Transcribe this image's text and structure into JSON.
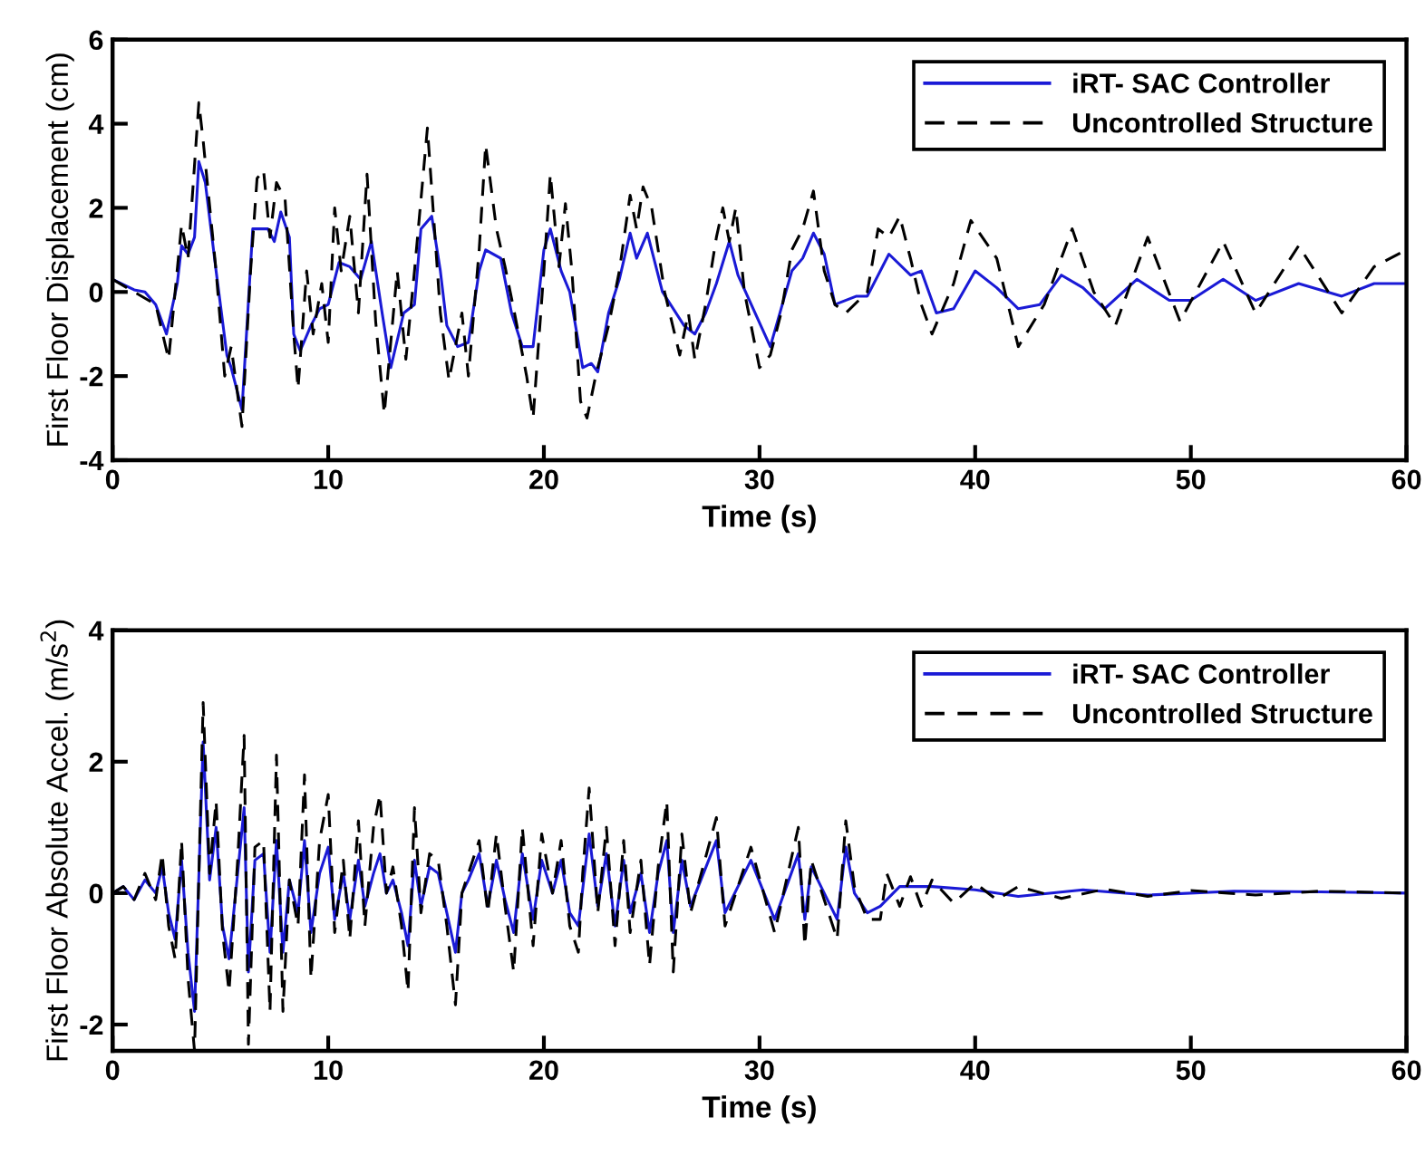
{
  "chart_data": [
    {
      "type": "line",
      "xlabel": "Time (s)",
      "ylabel": "First Floor Displacement (cm)",
      "xlim": [
        0,
        60
      ],
      "xticks": [
        0,
        10,
        20,
        30,
        40,
        50,
        60
      ],
      "ylim": [
        -4,
        6
      ],
      "yticks": [
        -4,
        -2,
        0,
        2,
        4,
        6
      ],
      "grid": false,
      "legend": "top right",
      "series": [
        {
          "name": "iRT- SAC Controller",
          "color": "#1a1ad6",
          "line_style": "solid",
          "x": [
            0,
            1,
            1.5,
            2,
            2.5,
            3,
            3.2,
            3.5,
            3.8,
            4.0,
            4.3,
            4.8,
            5.3,
            5.5,
            5.8,
            6.0,
            6.5,
            7.2,
            7.5,
            7.8,
            8.2,
            8.4,
            8.7,
            9.2,
            9.6,
            10,
            10.5,
            11,
            11.5,
            12,
            12.5,
            12.9,
            13.5,
            14,
            14.3,
            14.8,
            15.2,
            15.5,
            16,
            16.5,
            17,
            17.3,
            18,
            18.5,
            19,
            19.5,
            20,
            20.3,
            20.8,
            21.2,
            21.8,
            22.2,
            22.5,
            23,
            23.5,
            24,
            24.3,
            24.8,
            25.5,
            26.5,
            27,
            27.5,
            28,
            28.6,
            29.0,
            30.5,
            31.5,
            32,
            32.5,
            33,
            33.5,
            34.5,
            35,
            36,
            37,
            37.5,
            38.2,
            39,
            40,
            41,
            42,
            43,
            44,
            45,
            46,
            47.5,
            49,
            50,
            51.5,
            53,
            55,
            57,
            58.5,
            60
          ],
          "values": [
            0.3,
            0.05,
            0,
            -0.3,
            -1.0,
            0.2,
            1.1,
            0.9,
            1.3,
            3.1,
            2.6,
            0.5,
            -1.5,
            -1.8,
            -2.4,
            -2.8,
            1.5,
            1.5,
            1.2,
            1.9,
            1.3,
            -1.0,
            -1.4,
            -0.8,
            -0.4,
            -0.3,
            0.7,
            0.6,
            0.3,
            1.2,
            -0.5,
            -1.8,
            -0.5,
            -0.3,
            1.5,
            1.8,
            0.5,
            -0.8,
            -1.3,
            -1.2,
            0.5,
            1.0,
            0.8,
            -0.5,
            -1.3,
            -1.3,
            1.0,
            1.5,
            0.5,
            0,
            -1.8,
            -1.7,
            -1.9,
            -0.5,
            0.3,
            1.4,
            0.8,
            1.4,
            0,
            -0.8,
            -1.0,
            -0.5,
            0.2,
            1.2,
            0.4,
            -1.3,
            0.5,
            0.8,
            1.4,
            0.9,
            -0.3,
            -0.1,
            -0.1,
            0.9,
            0.4,
            0.5,
            -0.5,
            -0.4,
            0.5,
            0.1,
            -0.4,
            -0.3,
            0.4,
            0.1,
            -0.4,
            0.3,
            -0.2,
            -0.2,
            0.3,
            -0.2,
            0.2,
            -0.1,
            0.2,
            0.2
          ]
        },
        {
          "name": "Uncontrolled Structure",
          "color": "#000000",
          "line_style": "dashed",
          "x": [
            0,
            1,
            2,
            2.6,
            3.2,
            3.5,
            4.0,
            4.2,
            4.8,
            5.2,
            5.5,
            6.0,
            6.4,
            6.7,
            7.0,
            7.3,
            7.6,
            8.0,
            8.4,
            8.6,
            9.0,
            9.3,
            9.7,
            10,
            10.3,
            10.6,
            11,
            11.4,
            11.8,
            12.2,
            12.6,
            13.2,
            13.6,
            14.0,
            14.6,
            15.2,
            15.6,
            16.2,
            16.5,
            17.0,
            17.3,
            17.8,
            18.2,
            18.6,
            19.2,
            19.5,
            20,
            20.3,
            20.7,
            21.0,
            21.3,
            21.7,
            22.0,
            22.4,
            23.0,
            23.5,
            24.0,
            24.3,
            24.6,
            25.0,
            25.6,
            26.3,
            26.7,
            27.0,
            27.5,
            28.0,
            28.3,
            28.6,
            28.9,
            29.3,
            30.0,
            30.5,
            31.0,
            31.5,
            32.0,
            32.5,
            33.0,
            33.5,
            34.0,
            35.0,
            35.5,
            36.0,
            36.5,
            37.0,
            37.5,
            38.0,
            39.0,
            39.8,
            41.0,
            42.0,
            43.2,
            44.5,
            45.5,
            46.5,
            48.0,
            49.5,
            51.5,
            53.0,
            55.0,
            57.0,
            58.5,
            60.0
          ],
          "values": [
            0.3,
            0,
            -0.3,
            -1.6,
            1.6,
            0.8,
            4.5,
            3.6,
            0.5,
            -2.0,
            -1.3,
            -3.2,
            0.5,
            2.7,
            2.9,
            1.3,
            2.6,
            2.2,
            -1.0,
            -2.3,
            0.5,
            -1.0,
            0.2,
            -1.2,
            2.0,
            0.5,
            1.8,
            -0.5,
            2.8,
            -0.7,
            -2.9,
            0.5,
            -1.6,
            0.5,
            3.9,
            -0.5,
            -2.1,
            -0.5,
            -2.0,
            1.0,
            3.5,
            1.5,
            0.6,
            -0.4,
            -2.0,
            -3.0,
            0.5,
            2.8,
            0.6,
            2.1,
            0.5,
            -2.6,
            -3.0,
            -2.0,
            -0.8,
            0.5,
            2.3,
            1.5,
            2.5,
            2.0,
            0,
            -1.5,
            -0.5,
            -1.6,
            -0.3,
            1.3,
            2.0,
            1.2,
            2.0,
            0,
            -1.8,
            -1.5,
            -0.5,
            1.0,
            1.5,
            2.4,
            0.5,
            -0.3,
            -0.5,
            0,
            1.5,
            1.3,
            1.8,
            0.8,
            -0.3,
            -1.0,
            0.2,
            1.7,
            0.8,
            -1.3,
            -0.3,
            1.5,
            0,
            -0.8,
            1.3,
            -0.7,
            1.2,
            -0.5,
            1.1,
            -0.5,
            0.6,
            1.0
          ]
        }
      ]
    },
    {
      "type": "line",
      "xlabel": "Time (s)",
      "ylabel": "First Floor Absolute Accel. (m/s$^{2}$)",
      "xlim": [
        0,
        60
      ],
      "xticks": [
        0,
        10,
        20,
        30,
        40,
        50,
        60
      ],
      "ylim": [
        -2.4,
        4
      ],
      "yticks": [
        -2,
        0,
        2,
        4
      ],
      "grid": false,
      "legend": "top right",
      "series": [
        {
          "name": "iRT- SAC Controller",
          "color": "#1a1ad6",
          "line_style": "solid",
          "x": [
            0,
            0.5,
            1,
            1.5,
            2,
            2.3,
            2.6,
            2.9,
            3.2,
            3.5,
            3.8,
            4.2,
            4.5,
            4.8,
            5.1,
            5.4,
            5.8,
            6.1,
            6.3,
            6.6,
            7.0,
            7.3,
            7.6,
            7.9,
            8.2,
            8.6,
            8.9,
            9.2,
            9.6,
            10.0,
            10.3,
            10.7,
            11.0,
            11.4,
            11.7,
            12.1,
            12.4,
            12.7,
            13.0,
            13.4,
            13.7,
            14.0,
            14.3,
            14.7,
            15.1,
            15.5,
            15.9,
            16.2,
            16.5,
            17.0,
            17.4,
            17.8,
            18.2,
            18.6,
            19.0,
            19.5,
            19.9,
            20.4,
            20.8,
            21.2,
            21.6,
            22.1,
            22.5,
            22.9,
            23.3,
            23.7,
            24.0,
            24.5,
            24.9,
            25.3,
            25.7,
            26.0,
            26.4,
            26.8,
            28.0,
            28.4,
            29.6,
            30.7,
            31.8,
            32.1,
            32.4,
            33.6,
            34.0,
            34.4,
            35.0,
            35.6,
            36.5,
            38,
            40,
            42,
            45,
            48,
            52,
            56,
            60
          ],
          "values": [
            0,
            0.1,
            -0.1,
            0.2,
            0,
            0.4,
            -0.3,
            -0.7,
            0.5,
            -0.9,
            -1.8,
            2.3,
            0.2,
            1.0,
            -0.5,
            -1.0,
            0.3,
            1.3,
            -1.2,
            0.5,
            0.6,
            -0.9,
            0.8,
            -0.9,
            0.2,
            -0.3,
            0.8,
            -0.6,
            0.3,
            0.7,
            -0.4,
            0.3,
            -0.4,
            0.5,
            -0.2,
            0.3,
            0.6,
            0,
            0.2,
            -0.3,
            -0.8,
            0.5,
            -0.2,
            0.4,
            0.3,
            -0.3,
            -0.9,
            0,
            0.2,
            0.6,
            -0.2,
            0.5,
            -0.1,
            -0.6,
            0.6,
            -0.4,
            0.5,
            0,
            0.5,
            -0.3,
            -0.5,
            0.9,
            -0.2,
            0.6,
            -0.5,
            0.5,
            -0.3,
            0.3,
            -0.6,
            0.3,
            0.8,
            -0.6,
            0.5,
            -0.2,
            0.8,
            -0.3,
            0.5,
            -0.4,
            0.6,
            -0.4,
            0.4,
            -0.4,
            0.7,
            0,
            -0.3,
            -0.2,
            0.1,
            0.1,
            0.05,
            -0.05,
            0.05,
            -0.03,
            0.03,
            0.02,
            0
          ]
        },
        {
          "name": "Uncontrolled Structure",
          "color": "#000000",
          "line_style": "dashed",
          "x": [
            0,
            0.5,
            1,
            1.5,
            2,
            2.3,
            2.6,
            2.9,
            3.2,
            3.5,
            3.8,
            4.2,
            4.5,
            4.8,
            5.1,
            5.4,
            5.8,
            6.1,
            6.3,
            6.6,
            7.0,
            7.3,
            7.6,
            7.9,
            8.2,
            8.6,
            8.9,
            9.2,
            9.6,
            10.0,
            10.3,
            10.7,
            11.0,
            11.4,
            11.7,
            12.1,
            12.4,
            12.7,
            13.0,
            13.4,
            13.7,
            14.0,
            14.3,
            14.7,
            15.1,
            15.5,
            15.9,
            16.2,
            16.5,
            17.0,
            17.4,
            17.8,
            18.2,
            18.6,
            19.0,
            19.5,
            19.9,
            20.4,
            20.8,
            21.2,
            21.6,
            21.8,
            22.1,
            22.5,
            22.9,
            23.3,
            23.7,
            24.0,
            24.5,
            24.9,
            25.3,
            25.7,
            26.0,
            26.4,
            26.8,
            28.0,
            28.4,
            29.6,
            30.7,
            31.8,
            32.1,
            32.4,
            33.6,
            34.0,
            34.4,
            35.0,
            35.6,
            35.9,
            36.5,
            37.0,
            37.5,
            38,
            39,
            40,
            41,
            42,
            44,
            46,
            48,
            50,
            53,
            56,
            60
          ],
          "values": [
            0,
            0.1,
            -0.1,
            0.3,
            -0.1,
            0.6,
            -0.5,
            -1.0,
            0.8,
            -1.3,
            -2.4,
            2.9,
            0.3,
            1.4,
            -0.6,
            -1.5,
            0.5,
            2.4,
            -2.3,
            0.7,
            0.8,
            -1.8,
            2.1,
            -1.8,
            0.2,
            -0.5,
            1.8,
            -1.3,
            0.8,
            1.5,
            -0.6,
            0.5,
            -0.7,
            1.1,
            -0.5,
            1.0,
            1.5,
            0,
            0.4,
            -0.5,
            -1.5,
            1.3,
            -0.3,
            0.6,
            0.5,
            -0.5,
            -1.7,
            0,
            0.3,
            0.8,
            -0.3,
            0.9,
            -0.2,
            -1.2,
            1.0,
            -0.8,
            0.9,
            0,
            0.8,
            -0.5,
            -0.9,
            0.3,
            1.6,
            -0.3,
            1.0,
            -0.8,
            0.8,
            -0.6,
            0.5,
            -1.1,
            0.4,
            1.4,
            -1.2,
            0.9,
            -0.3,
            1.15,
            -0.5,
            0.7,
            -0.6,
            1.0,
            -0.8,
            0.5,
            -0.7,
            1.1,
            0.1,
            -0.4,
            -0.4,
            0.3,
            -0.2,
            0.25,
            -0.2,
            0.2,
            -0.15,
            0.15,
            -0.1,
            0.1,
            -0.08,
            0.06,
            -0.05,
            0.04,
            -0.03,
            0.03,
            0
          ]
        }
      ]
    }
  ]
}
